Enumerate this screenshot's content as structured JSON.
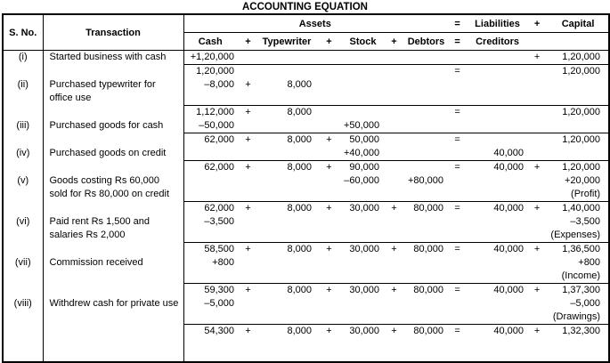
{
  "title": "ACCOUNTING EQUATION",
  "table": {
    "header": {
      "s_no": "S. No.",
      "transaction": "Transaction",
      "assets": "Assets",
      "equals_top": "=",
      "liabilities": "Liabilities",
      "plus_top": "+",
      "capital": "Capital",
      "cash": "Cash",
      "plus1": "+",
      "typewriter": "Typewriter",
      "plus2": "+",
      "stock": "Stock",
      "plus3": "+",
      "debtors": "Debtors",
      "equals": "=",
      "creditors": "Creditors"
    },
    "rows": [
      {
        "type": "effect",
        "cells": [
          "(i)",
          "Started business with cash",
          "+1,20,000",
          "",
          "",
          "",
          "",
          "",
          "",
          "",
          "",
          "+",
          "1,20,000"
        ]
      },
      {
        "type": "balance",
        "cells": [
          "",
          "",
          "1,20,000",
          "",
          "",
          "",
          "",
          "",
          "",
          "=",
          "",
          "",
          "1,20,000"
        ]
      },
      {
        "type": "effect",
        "cells": [
          "(ii)",
          "Purchased typewriter for",
          "–8,000",
          "+",
          "8,000",
          "",
          "",
          "",
          "",
          "",
          "",
          "",
          ""
        ]
      },
      {
        "type": "effect",
        "cells": [
          "",
          "office use",
          "",
          "",
          "",
          "",
          "",
          "",
          "",
          "",
          "",
          "",
          ""
        ]
      },
      {
        "type": "balance",
        "cells": [
          "",
          "",
          "1,12,000",
          "+",
          "8,000",
          "",
          "",
          "",
          "",
          "=",
          "",
          "",
          "1,20,000"
        ]
      },
      {
        "type": "effect",
        "cells": [
          "(iii)",
          "Purchased goods for cash",
          "–50,000",
          "",
          "",
          "",
          "+50,000",
          "",
          "",
          "",
          "",
          "",
          ""
        ]
      },
      {
        "type": "balance",
        "cells": [
          "",
          "",
          "62,000",
          "+",
          "8,000",
          "+",
          "50,000",
          "",
          "",
          "=",
          "",
          "",
          "1,20,000"
        ]
      },
      {
        "type": "effect",
        "cells": [
          "(iv)",
          "Purchased goods on credit",
          "",
          "",
          "",
          "",
          "+40,000",
          "",
          "",
          "",
          "40,000",
          "",
          ""
        ]
      },
      {
        "type": "balance",
        "cells": [
          "",
          "",
          "62,000",
          "+",
          "8,000",
          "+",
          "90,000",
          "",
          "",
          "=",
          "40,000",
          "+",
          "1,20,000"
        ]
      },
      {
        "type": "effect",
        "cells": [
          "(v)",
          "Goods costing Rs 60,000",
          "",
          "",
          "",
          "",
          "–60,000",
          "",
          "+80,000",
          "",
          "",
          "",
          "+20,000"
        ]
      },
      {
        "type": "effect",
        "cells": [
          "",
          "sold for Rs 80,000 on credit",
          "",
          "",
          "",
          "",
          "",
          "",
          "",
          "",
          "",
          "",
          "(Profit)"
        ]
      },
      {
        "type": "balance",
        "cells": [
          "",
          "",
          "62,000",
          "+",
          "8,000",
          "+",
          "30,000",
          "+",
          "80,000",
          "=",
          "40,000",
          "+",
          "1,40,000"
        ]
      },
      {
        "type": "effect",
        "cells": [
          "(vi)",
          "Paid rent Rs 1,500 and",
          "–3,500",
          "",
          "",
          "",
          "",
          "",
          "",
          "",
          "",
          "",
          "–3,500"
        ]
      },
      {
        "type": "effect",
        "cells": [
          "",
          "salaries Rs 2,000",
          "",
          "",
          "",
          "",
          "",
          "",
          "",
          "",
          "",
          "",
          "(Expenses)"
        ]
      },
      {
        "type": "balance",
        "cells": [
          "",
          "",
          "58,500",
          "+",
          "8,000",
          "+",
          "30,000",
          "+",
          "80,000",
          "=",
          "40,000",
          "+",
          "1,36,500"
        ]
      },
      {
        "type": "effect",
        "cells": [
          "(vii)",
          "Commission received",
          "+800",
          "",
          "",
          "",
          "",
          "",
          "",
          "",
          "",
          "",
          "+800"
        ]
      },
      {
        "type": "effect",
        "cells": [
          "",
          "",
          "",
          "",
          "",
          "",
          "",
          "",
          "",
          "",
          "",
          "",
          "(Income)"
        ]
      },
      {
        "type": "balance",
        "cells": [
          "",
          "",
          "59,300",
          "+",
          "8,000",
          "+",
          "30,000",
          "+",
          "80,000",
          "=",
          "40,000",
          "+",
          "1,37,300"
        ]
      },
      {
        "type": "effect",
        "cells": [
          "(viii)",
          "Withdrew cash for private use",
          "–5,000",
          "",
          "",
          "",
          "",
          "",
          "",
          "",
          "",
          "",
          "–5,000"
        ]
      },
      {
        "type": "effect",
        "cells": [
          "",
          "",
          "",
          "",
          "",
          "",
          "",
          "",
          "",
          "",
          "",
          "",
          "(Drawings)"
        ]
      },
      {
        "type": "balance",
        "cells": [
          "",
          "",
          "54,300",
          "+",
          "8,000",
          "+",
          "30,000",
          "+",
          "80,000",
          "=",
          "40,000",
          "+",
          "1,32,300"
        ]
      },
      {
        "type": "filler",
        "cells": [
          "",
          "",
          "",
          "",
          "",
          "",
          "",
          "",
          "",
          "",
          "",
          "",
          ""
        ]
      }
    ]
  }
}
